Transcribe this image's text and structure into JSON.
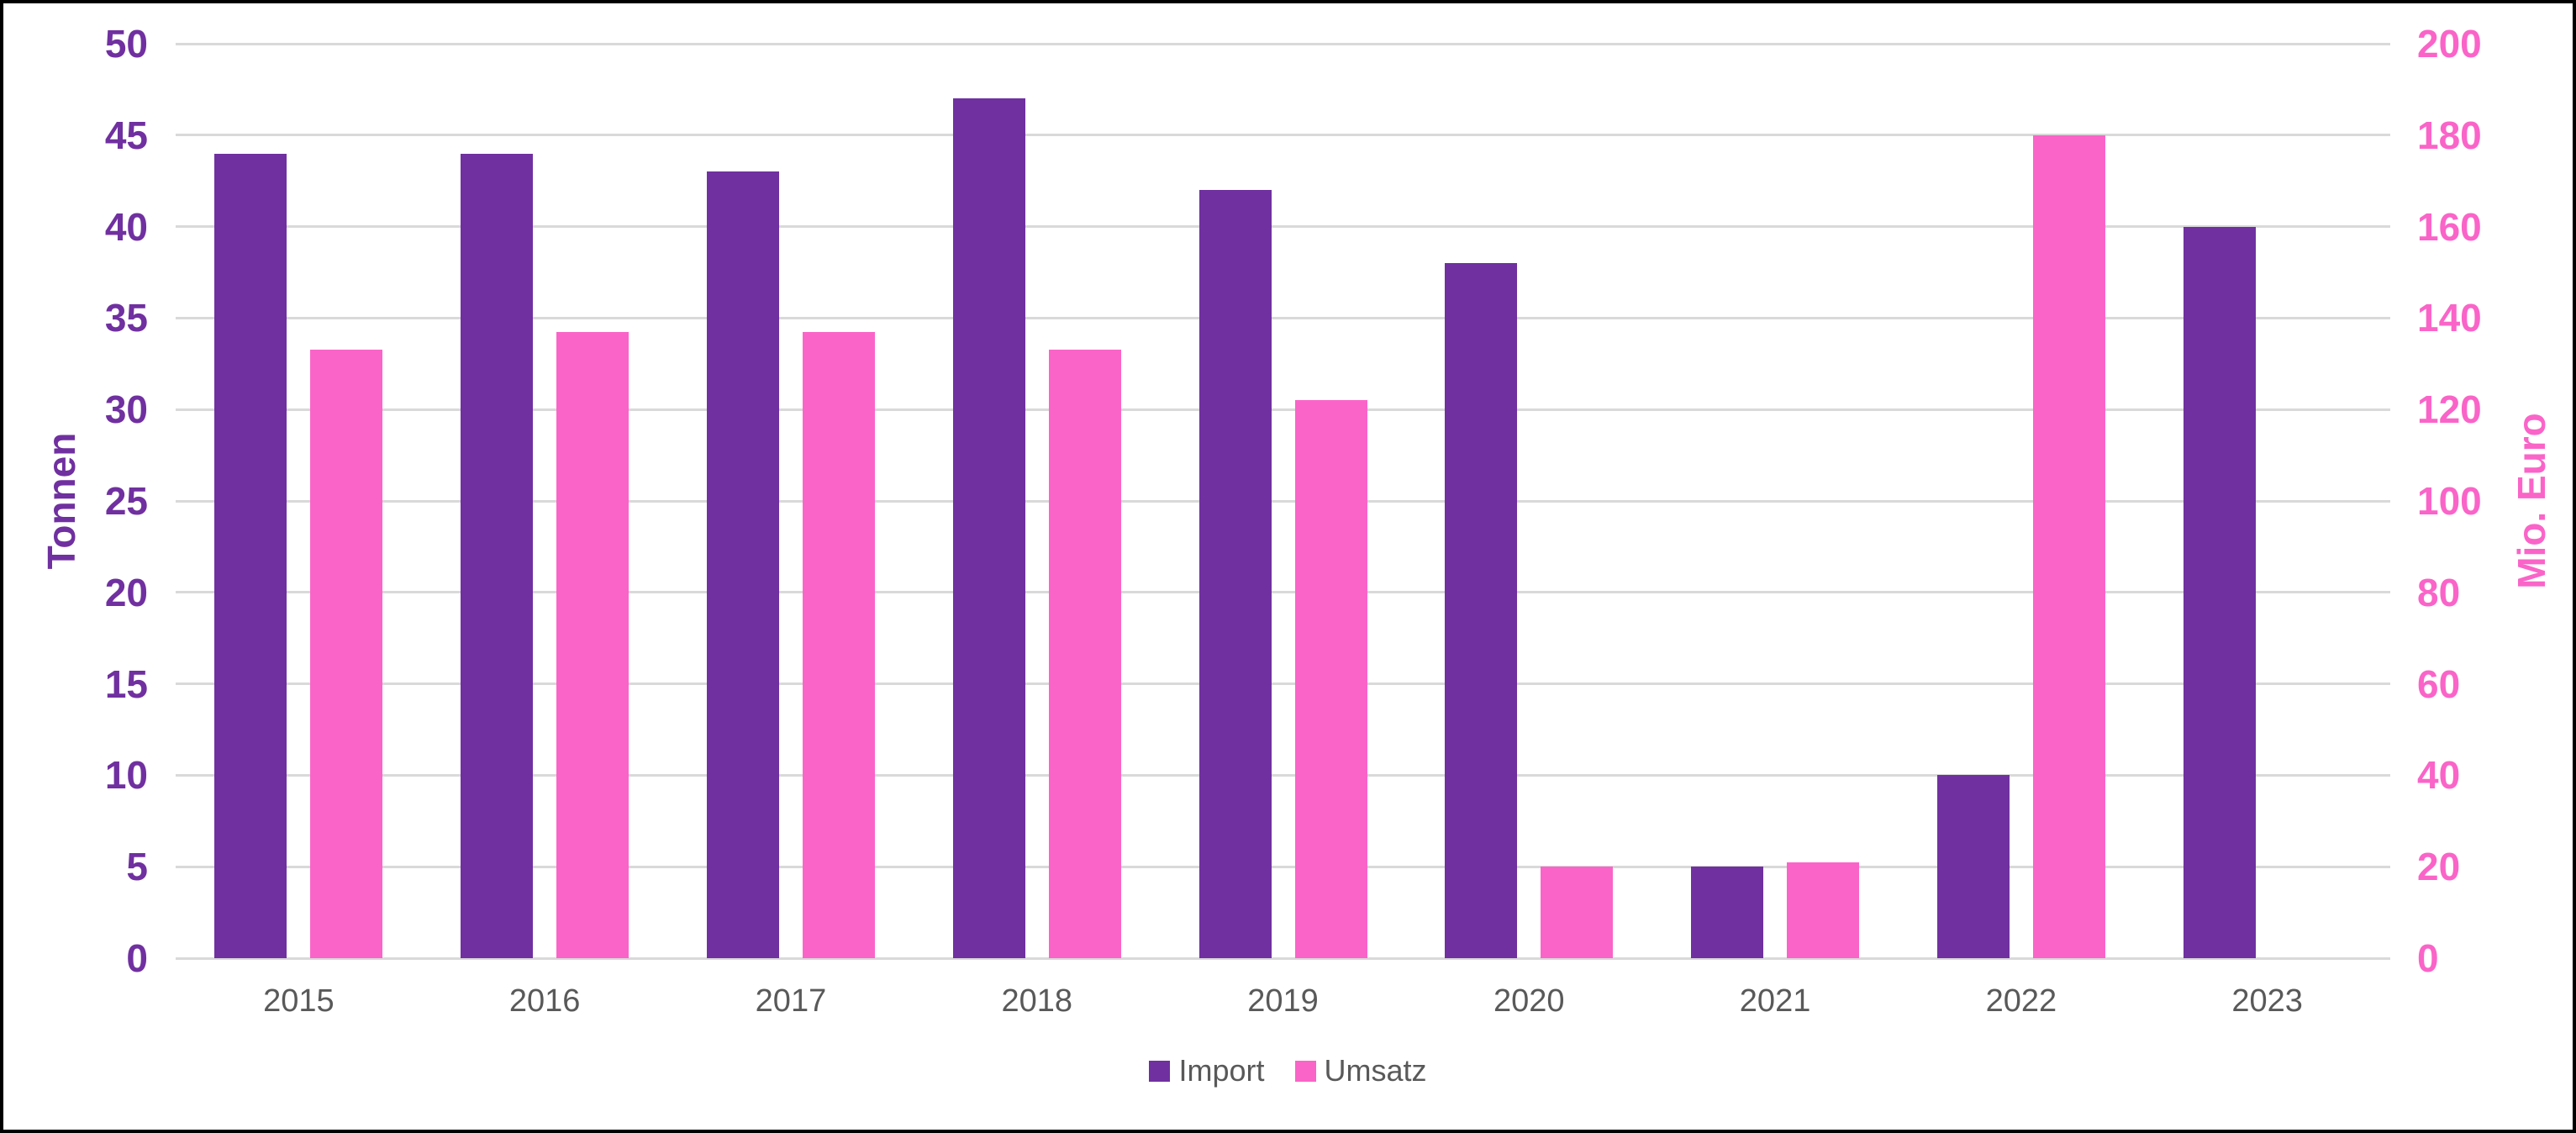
{
  "chart_data": {
    "type": "bar",
    "categories": [
      "2015",
      "2016",
      "2017",
      "2018",
      "2019",
      "2020",
      "2021",
      "2022",
      "2023"
    ],
    "series": [
      {
        "name": "Import",
        "axis": "left",
        "color": "#7030A0",
        "values": [
          44,
          44,
          43,
          47,
          42,
          38,
          5,
          10,
          40
        ]
      },
      {
        "name": "Umsatz",
        "axis": "right",
        "color": "#FA64C8",
        "values": [
          133,
          137,
          137,
          133,
          122,
          20,
          21,
          180,
          null
        ]
      }
    ],
    "left_axis": {
      "label": "Tonnen",
      "min": 0,
      "max": 50,
      "step": 5,
      "ticks": [
        0,
        5,
        10,
        15,
        20,
        25,
        30,
        35,
        40,
        45,
        50
      ],
      "color": "#7030A0"
    },
    "right_axis": {
      "label": "Mio. Euro",
      "min": 0,
      "max": 200,
      "step": 20,
      "ticks": [
        0,
        20,
        40,
        60,
        80,
        100,
        120,
        140,
        160,
        180,
        200
      ],
      "color": "#FA64C8"
    },
    "grid": true,
    "gridline_color": "#D9D9D9",
    "category_label_color": "#595959",
    "legend_position": "bottom",
    "legend": [
      "Import",
      "Umsatz"
    ]
  }
}
